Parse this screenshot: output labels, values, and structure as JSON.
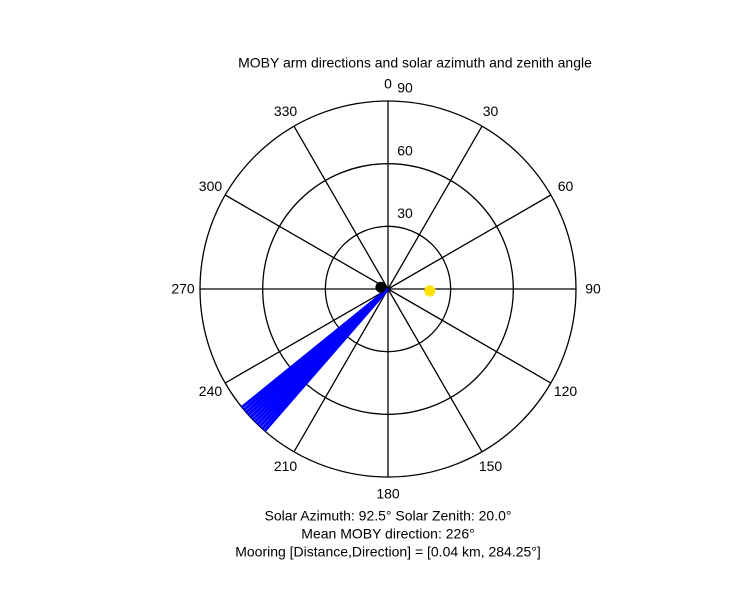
{
  "chart_data": {
    "type": "polar",
    "title": "MOBY arm directions and solar azimuth and zenith angle",
    "theta_direction": "clockwise",
    "theta_zero": "top",
    "thetaticks": [
      0,
      30,
      60,
      90,
      120,
      150,
      180,
      210,
      240,
      270,
      300,
      330
    ],
    "rlim": [
      0,
      90
    ],
    "rticks": [
      30,
      60,
      90
    ],
    "grid": true,
    "arms": {
      "color": "#0000ff",
      "theta": [
        221,
        222,
        223,
        224,
        225,
        226,
        227,
        228,
        229,
        230,
        231
      ],
      "r": [
        90,
        90,
        90,
        90,
        90,
        90,
        90,
        90,
        90,
        90,
        90
      ]
    },
    "sun": {
      "color": "#ffe000",
      "theta": [
        92.5
      ],
      "r": [
        20
      ]
    },
    "mooring": {
      "color": "#000000",
      "theta": [
        284.25
      ],
      "r": [
        3.5
      ]
    },
    "annotations": [
      "Solar Azimuth: 92.5°   Solar Zenith: 20.0°",
      "Mean MOBY direction: 226°",
      "Mooring [Distance,Direction] = [0.04 km, 284.25°]"
    ]
  }
}
